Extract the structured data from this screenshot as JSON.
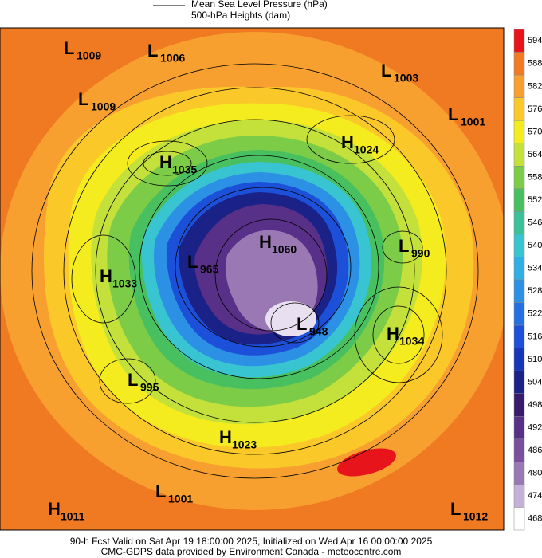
{
  "legend": {
    "lines": [
      "Mean Sea Level Pressure (hPa)",
      "500-hPa Heights (dam)"
    ]
  },
  "centers": [
    {
      "type": "L",
      "value": 1009
    },
    {
      "type": "L",
      "value": 1006
    },
    {
      "type": "L",
      "value": 1003
    },
    {
      "type": "L",
      "value": 1009
    },
    {
      "type": "L",
      "value": 1001
    },
    {
      "type": "H",
      "value": 1024
    },
    {
      "type": "H",
      "value": 1035
    },
    {
      "type": "L",
      "value": 990
    },
    {
      "type": "H",
      "value": 1060
    },
    {
      "type": "L",
      "value": 965
    },
    {
      "type": "H",
      "value": 1033
    },
    {
      "type": "L",
      "value": 948
    },
    {
      "type": "H",
      "value": 1034
    },
    {
      "type": "L",
      "value": 995
    },
    {
      "type": "H",
      "value": 1023
    },
    {
      "type": "L",
      "value": 1001
    },
    {
      "type": "H",
      "value": 1011
    },
    {
      "type": "L",
      "value": 1012
    }
  ],
  "colorbar": {
    "levels": [
      594,
      588,
      582,
      576,
      570,
      564,
      558,
      552,
      546,
      540,
      534,
      528,
      522,
      516,
      510,
      504,
      498,
      492,
      486,
      480,
      474,
      468
    ],
    "colors": [
      "#e8141c",
      "#f37a22",
      "#f7a030",
      "#fbc82a",
      "#f4ec1e",
      "#c4e03a",
      "#7ccc48",
      "#48c060",
      "#3cc098",
      "#38c4d0",
      "#30aee6",
      "#2c90e4",
      "#2470e0",
      "#1c50d8",
      "#1836b8",
      "#1a2288",
      "#3a1a6c",
      "#583088",
      "#7a509c",
      "#9a78b4",
      "#c4b0d8",
      "#ffffff"
    ]
  },
  "footer": [
    "90-h Fcst Valid on Sat Apr 19 18:00:00 2025, Initialized on Wed Apr 16 00:00:00 2025",
    "CMC-GDPS data provided by Environment Canada - meteocentre.com"
  ]
}
